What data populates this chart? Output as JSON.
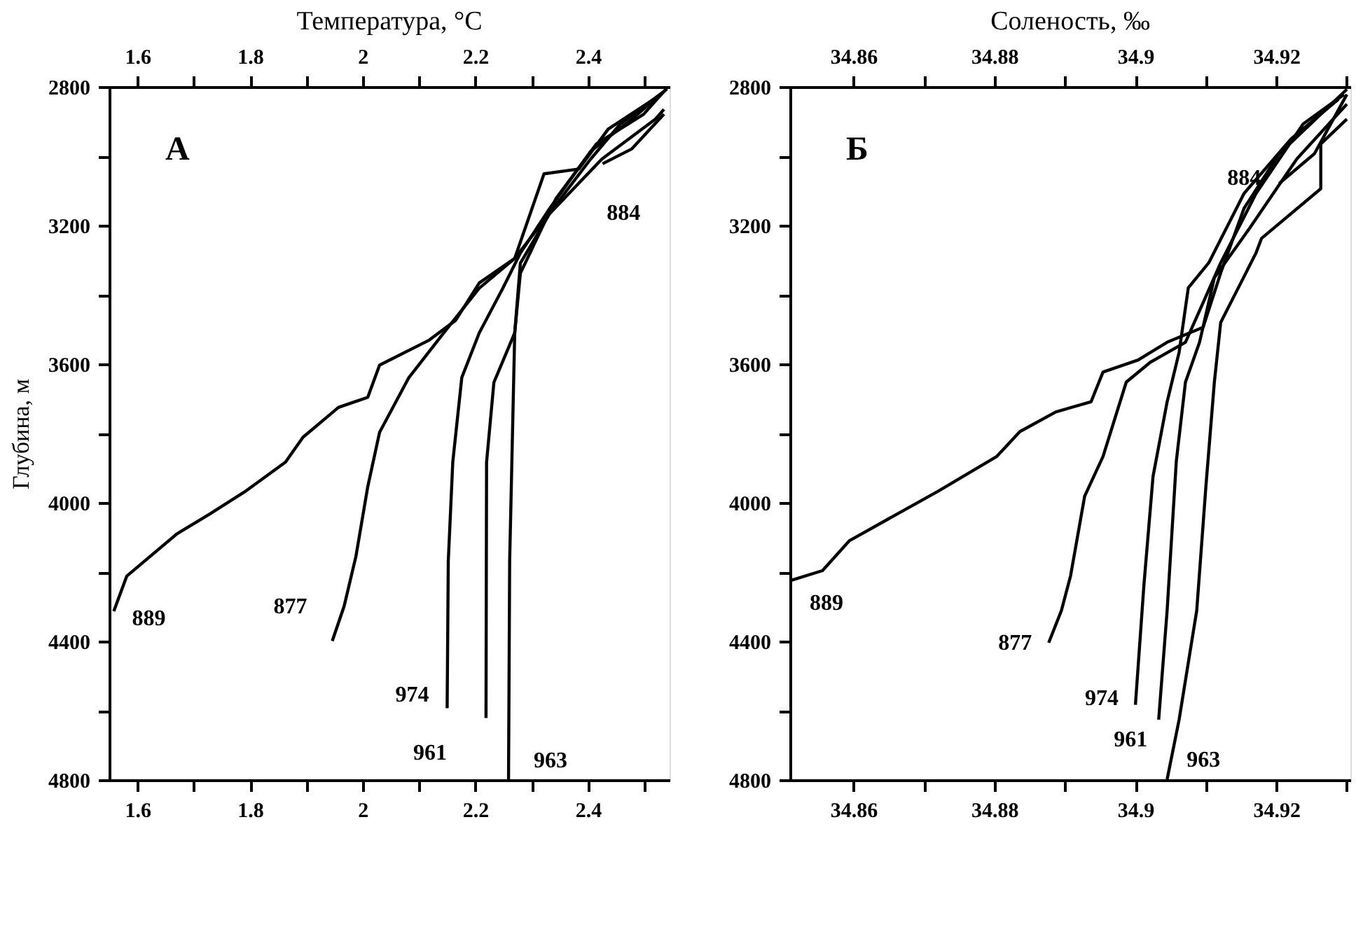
{
  "chart_data": [
    {
      "type": "line",
      "title": "Температура, °C",
      "ylabel": "Глубина, м",
      "annotations": [
        "A"
      ],
      "xlim": [
        1.55,
        2.545
      ],
      "x2lim": [
        1.55,
        2.545
      ],
      "xticks": [
        1.6,
        {
          "value": 1.7,
          "label": null
        },
        1.8,
        {
          "value": 1.9,
          "label": null
        },
        2,
        {
          "value": 2.1,
          "label": null
        },
        2.2,
        {
          "value": 2.3,
          "label": null
        },
        2.4,
        {
          "value": 2.5,
          "label": null
        }
      ],
      "x2ticks": [
        1.6,
        {
          "value": 1.7,
          "label": null
        },
        1.8,
        {
          "value": 1.9,
          "label": null
        },
        2,
        {
          "value": 2.1,
          "label": null
        },
        2.2,
        {
          "value": 2.3,
          "label": null
        },
        2.4,
        {
          "value": 2.5,
          "label": null
        }
      ],
      "ylim": [
        4800,
        2800
      ],
      "yticks": [
        2800,
        {
          "value": 3000,
          "label": null
        },
        3200,
        {
          "value": 3400,
          "label": null
        },
        3600,
        {
          "value": 3800,
          "label": null
        },
        4000,
        {
          "value": 4200,
          "label": null
        },
        4400,
        {
          "value": 4600,
          "label": null
        },
        4800
      ],
      "grid": false,
      "legend": false,
      "marker": "none",
      "line_style": "solid",
      "series": [
        {
          "name": "889",
          "color": "#000000",
          "x": [
            2.54,
            2.457,
            2.405,
            2.311,
            2.27,
            2.207,
            2.165,
            2.118,
            2.03,
            2.009,
            1.957,
            1.894,
            1.863,
            1.79,
            1.728,
            1.67,
            1.581,
            1.558
          ],
          "values": [
            2807,
            2908,
            3008,
            3209,
            3295,
            3366,
            3474,
            3531,
            3603,
            3696,
            3725,
            3811,
            3883,
            3969,
            4033,
            4090,
            4212,
            4313
          ]
        },
        {
          "name": "877",
          "color": "#000000",
          "x": [
            2.53,
            2.436,
            2.384,
            2.322,
            2.27,
            2.207,
            2.144,
            2.082,
            2.03,
            2.009,
            1.988,
            1.967,
            1.946
          ],
          "values": [
            2822,
            2922,
            3037,
            3051,
            3295,
            3381,
            3510,
            3639,
            3797,
            3954,
            4155,
            4299,
            4399
          ]
        },
        {
          "name": "974",
          "color": "#000000",
          "x": [
            2.535,
            2.478,
            2.405,
            2.332,
            2.28,
            2.249,
            2.207,
            2.176,
            2.16,
            2.152,
            2.15
          ],
          "values": [
            2814,
            2893,
            2986,
            3151,
            3280,
            3381,
            3510,
            3639,
            3883,
            4169,
            4593
          ]
        },
        {
          "name": "961",
          "color": "#000000",
          "x": [
            2.54,
            2.499,
            2.415,
            2.343,
            2.28,
            2.27,
            2.233,
            2.22,
            2.219
          ],
          "values": [
            2804,
            2879,
            2965,
            3123,
            3338,
            3510,
            3653,
            3883,
            4621
          ]
        },
        {
          "name": "963",
          "color": "#000000",
          "x": [
            2.535,
            2.52,
            2.425,
            2.332,
            2.28,
            2.27,
            2.261,
            2.259
          ],
          "values": [
            2865,
            2893,
            3008,
            3166,
            3309,
            3510,
            4169,
            4800
          ]
        },
        {
          "name": "884",
          "color": "#000000",
          "x": [
            2.535,
            2.478,
            2.426
          ],
          "values": [
            2879,
            2979,
            3022
          ]
        }
      ]
    },
    {
      "type": "line",
      "title": "Соленость, ‰",
      "annotations": [
        "Б"
      ],
      "xlim": [
        34.851,
        34.9305
      ],
      "x2lim": [
        34.851,
        34.9305
      ],
      "xticks": [
        34.86,
        {
          "value": 34.87,
          "label": null
        },
        34.88,
        {
          "value": 34.89,
          "label": null
        },
        34.9,
        {
          "value": 34.91,
          "label": null
        },
        34.92,
        {
          "value": 34.93,
          "label": null
        }
      ],
      "x2ticks": [
        34.86,
        {
          "value": 34.87,
          "label": null
        },
        34.88,
        {
          "value": 34.89,
          "label": null
        },
        34.9,
        {
          "value": 34.91,
          "label": null
        },
        34.92,
        {
          "value": 34.93,
          "label": null
        }
      ],
      "ylim": [
        4800,
        2800
      ],
      "yticks": [
        2800,
        {
          "value": 3000,
          "label": null
        },
        3200,
        {
          "value": 3400,
          "label": null
        },
        3600,
        {
          "value": 3800,
          "label": null
        },
        4000,
        {
          "value": 4200,
          "label": null
        },
        4400,
        {
          "value": 4600,
          "label": null
        },
        4800
      ],
      "grid": false,
      "legend": false,
      "marker": "none",
      "line_style": "solid",
      "series": [
        {
          "name": "889",
          "color": "#000000",
          "x": [
            34.93,
            34.9263,
            34.9204,
            34.9154,
            34.9121,
            34.9096,
            34.9045,
            34.9004,
            34.8954,
            34.8937,
            34.8887,
            34.8836,
            34.8803,
            34.872,
            34.8644,
            34.8594,
            34.8556,
            34.851
          ],
          "values": [
            2807,
            2879,
            2993,
            3151,
            3337,
            3494,
            3537,
            3588,
            3623,
            3709,
            3738,
            3795,
            3867,
            3967,
            4053,
            4110,
            4196,
            4225
          ]
        },
        {
          "name": "877",
          "color": "#000000",
          "x": [
            34.9296,
            34.9238,
            34.9171,
            34.9121,
            34.9096,
            34.9071,
            34.9021,
            34.8987,
            34.8954,
            34.8928,
            34.8908,
            34.8895,
            34.8877
          ],
          "values": [
            2822,
            2907,
            3108,
            3308,
            3423,
            3537,
            3595,
            3652,
            3867,
            3981,
            4211,
            4311,
            4404
          ]
        },
        {
          "name": "974",
          "color": "#000000",
          "x": [
            34.9288,
            34.9221,
            34.9154,
            34.9104,
            34.9075,
            34.9062,
            34.9045,
            34.9025,
            34.9012,
            34.9
          ],
          "values": [
            2836,
            2950,
            3108,
            3308,
            3380,
            3566,
            3709,
            3924,
            4239,
            4583
          ]
        },
        {
          "name": "961",
          "color": "#000000",
          "x": [
            34.93,
            34.9229,
            34.9162,
            34.9112,
            34.9091,
            34.9071,
            34.9058,
            34.9045,
            34.9033
          ],
          "values": [
            2850,
            3008,
            3208,
            3351,
            3537,
            3652,
            3881,
            4311,
            4626
          ]
        },
        {
          "name": "963",
          "color": "#000000",
          "x": [
            34.93,
            34.9263,
            34.9263,
            34.9179,
            34.9171,
            34.9121,
            34.9112,
            34.91,
            34.9087,
            34.9062,
            34.9045
          ],
          "values": [
            2893,
            2965,
            3094,
            3237,
            3280,
            3480,
            3652,
            3953,
            4311,
            4626,
            4798
          ]
        },
        {
          "name": "884",
          "color": "#000000",
          "x": [
            34.93,
            34.9254,
            34.9204
          ],
          "values": [
            2822,
            2993,
            3079
          ]
        }
      ]
    }
  ]
}
